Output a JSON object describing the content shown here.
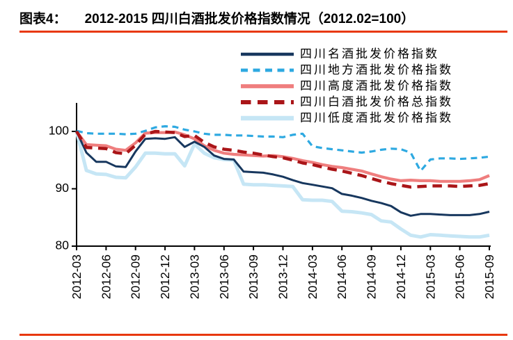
{
  "header": {
    "label": "图表4：",
    "title": "2012-2015 四川白酒批发价格指数情况（2012.02=100）"
  },
  "colors": {
    "rule": "#E8380D",
    "axis": "#000000",
    "navy": "#17375E",
    "sky": "#2EA9E1",
    "salmon": "#EF7E7E",
    "darkred": "#AA1518",
    "pale": "#C6E6F5"
  },
  "chart_data": {
    "type": "line",
    "title": "2012-2015 四川白酒批发价格指数情况（2012.02=100）",
    "xlabel": "",
    "ylabel": "",
    "ylim": [
      80,
      105
    ],
    "yticks": [
      100,
      90,
      80
    ],
    "grid": false,
    "legend_position": "top-right",
    "x_tick_step_months": 3,
    "x": [
      "2012-03",
      "2012-04",
      "2012-05",
      "2012-06",
      "2012-07",
      "2012-08",
      "2012-09",
      "2012-10",
      "2012-11",
      "2012-12",
      "2013-01",
      "2013-02",
      "2013-03",
      "2013-04",
      "2013-05",
      "2013-06",
      "2013-07",
      "2013-08",
      "2013-09",
      "2013-10",
      "2013-11",
      "2013-12",
      "2014-01",
      "2014-02",
      "2014-03",
      "2014-04",
      "2014-05",
      "2014-06",
      "2014-07",
      "2014-08",
      "2014-09",
      "2014-10",
      "2014-11",
      "2014-12",
      "2015-01",
      "2015-02",
      "2015-03",
      "2015-04",
      "2015-05",
      "2015-06",
      "2015-07",
      "2015-08",
      "2015-09"
    ],
    "series": [
      {
        "name": "四川名酒批发价格指数",
        "color": "#17375E",
        "line": "solid",
        "dash": "",
        "width": 3,
        "values": [
          100,
          96.3,
          94.7,
          94.7,
          93.9,
          93.8,
          96.5,
          98.7,
          98.8,
          98.7,
          99.0,
          97.3,
          98.2,
          97.3,
          95.8,
          95.2,
          95.1,
          93.0,
          92.9,
          92.8,
          92.5,
          92.1,
          91.5,
          91.0,
          90.7,
          90.4,
          90.1,
          89.1,
          88.8,
          88.4,
          87.9,
          87.5,
          87.0,
          85.9,
          85.3,
          85.6,
          85.6,
          85.5,
          85.4,
          85.4,
          85.4,
          85.6,
          86.0
        ]
      },
      {
        "name": "四川地方酒批发价格指数",
        "color": "#2EA9E1",
        "line": "dashed",
        "dash": "9 6.5",
        "width": 3.2,
        "values": [
          100.1,
          99.7,
          99.6,
          99.6,
          99.6,
          99.5,
          99.6,
          100.1,
          100.7,
          100.9,
          100.8,
          100.3,
          100.0,
          99.6,
          99.4,
          99.4,
          99.3,
          99.3,
          99.2,
          99.1,
          99.1,
          99.0,
          99.4,
          99.6,
          97.4,
          97.1,
          96.9,
          96.7,
          96.5,
          96.3,
          96.5,
          96.8,
          97.0,
          96.9,
          96.3,
          93.1,
          95.1,
          95.3,
          95.3,
          95.2,
          95.3,
          95.4,
          95.6
        ]
      },
      {
        "name": "四川高度酒批发价格指数",
        "color": "#EF7E7E",
        "line": "solid",
        "dash": "",
        "width": 4.2,
        "values": [
          100,
          97.7,
          97.6,
          97.5,
          96.9,
          96.7,
          98.0,
          99.7,
          99.8,
          99.8,
          99.9,
          99.4,
          98.7,
          97.5,
          96.7,
          96.2,
          96.0,
          95.9,
          95.8,
          95.7,
          95.8,
          95.6,
          95.3,
          94.9,
          94.6,
          94.2,
          93.9,
          93.7,
          93.4,
          93.1,
          92.6,
          92.1,
          91.7,
          91.4,
          91.5,
          91.4,
          91.4,
          91.3,
          91.3,
          91.3,
          91.4,
          91.6,
          92.3
        ]
      },
      {
        "name": "四川白酒批发价格总指数",
        "color": "#AA1518",
        "line": "dashed",
        "dash": "13.5 8.5",
        "width": 4.5,
        "values": [
          100,
          97.2,
          97.1,
          97.0,
          96.3,
          96.1,
          97.6,
          99.5,
          100.0,
          99.9,
          99.8,
          99.1,
          99.3,
          98.1,
          97.3,
          96.9,
          96.7,
          96.4,
          96.2,
          95.9,
          95.6,
          95.4,
          95.0,
          94.5,
          94.2,
          93.8,
          93.4,
          93.1,
          92.7,
          92.3,
          91.8,
          91.3,
          90.9,
          90.6,
          90.3,
          90.4,
          90.5,
          90.5,
          90.5,
          90.4,
          90.5,
          90.6,
          90.9
        ]
      },
      {
        "name": "四川低度酒批发价格指数",
        "color": "#C6E6F5",
        "line": "solid",
        "dash": "",
        "width": 5,
        "values": [
          100,
          93.2,
          92.6,
          92.5,
          92.0,
          91.9,
          93.8,
          96.2,
          96.2,
          96.1,
          96.1,
          94.0,
          97.8,
          96.2,
          95.4,
          95.1,
          95.0,
          90.8,
          90.7,
          90.7,
          90.6,
          90.5,
          90.4,
          88.1,
          88.0,
          88.0,
          87.8,
          86.1,
          86.0,
          85.8,
          85.5,
          84.4,
          84.2,
          83.0,
          81.9,
          81.6,
          82.0,
          81.9,
          81.8,
          81.7,
          81.6,
          81.6,
          81.9
        ]
      }
    ]
  }
}
